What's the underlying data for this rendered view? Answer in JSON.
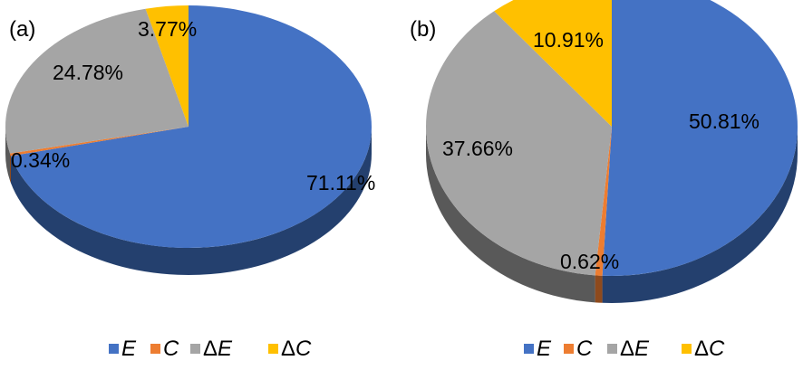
{
  "colors": {
    "E": "#4472c4",
    "C": "#ed7d31",
    "dE": "#a5a5a5",
    "dC": "#ffc000",
    "E_side": "#24406e",
    "C_side": "#8e4a1d",
    "dE_side": "#595959",
    "dC_side": "#997300"
  },
  "chart_data": [
    {
      "type": "pie",
      "panel_label": "(a)",
      "slices": [
        {
          "key": "E",
          "value": 71.11,
          "label": "71.11%"
        },
        {
          "key": "C",
          "value": 0.34,
          "label": "0.34%"
        },
        {
          "key": "dE",
          "value": 24.78,
          "label": "24.78%"
        },
        {
          "key": "dC",
          "value": 3.77,
          "label": "3.77%"
        }
      ],
      "legend": [
        {
          "key": "E",
          "prefix": "",
          "symbol": "E"
        },
        {
          "key": "C",
          "prefix": "",
          "symbol": "C"
        },
        {
          "key": "dE",
          "prefix": "Δ",
          "symbol": "E"
        },
        {
          "key": "dC",
          "prefix": "Δ",
          "symbol": "C"
        }
      ]
    },
    {
      "type": "pie",
      "panel_label": "(b)",
      "slices": [
        {
          "key": "E",
          "value": 50.81,
          "label": "50.81%"
        },
        {
          "key": "C",
          "value": 0.62,
          "label": "0.62%"
        },
        {
          "key": "dE",
          "value": 37.66,
          "label": "37.66%"
        },
        {
          "key": "dC",
          "value": 10.91,
          "label": "10.91%"
        }
      ],
      "legend": [
        {
          "key": "E",
          "prefix": "",
          "symbol": "E"
        },
        {
          "key": "C",
          "prefix": "",
          "symbol": "C"
        },
        {
          "key": "dE",
          "prefix": "Δ",
          "symbol": "E"
        },
        {
          "key": "dC",
          "prefix": "Δ",
          "symbol": "C"
        }
      ]
    }
  ]
}
